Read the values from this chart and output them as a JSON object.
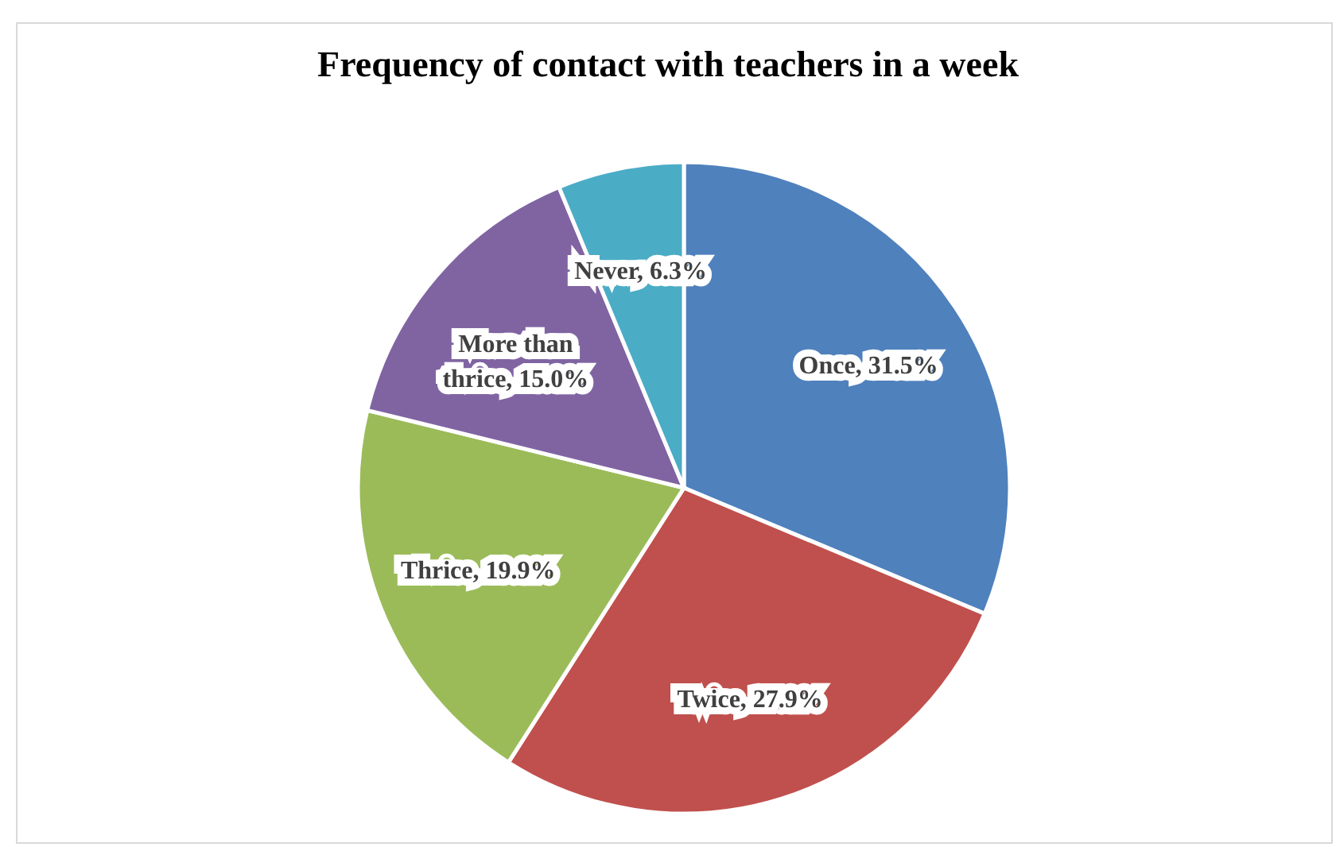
{
  "chart_data": {
    "type": "pie",
    "title": "Frequency of contact with teachers in a week",
    "categories": [
      "Once",
      "Twice",
      "Thrice",
      "More than thrice",
      "Never"
    ],
    "values": [
      31.5,
      27.9,
      19.9,
      15.0,
      6.3
    ],
    "colors": [
      "#4f81bd",
      "#c0504d",
      "#9bbb59",
      "#8064a2",
      "#4bacc6"
    ],
    "value_labels": [
      "31.5%",
      "27.9%",
      "19.9%",
      "15.0%",
      "6.3%"
    ]
  }
}
